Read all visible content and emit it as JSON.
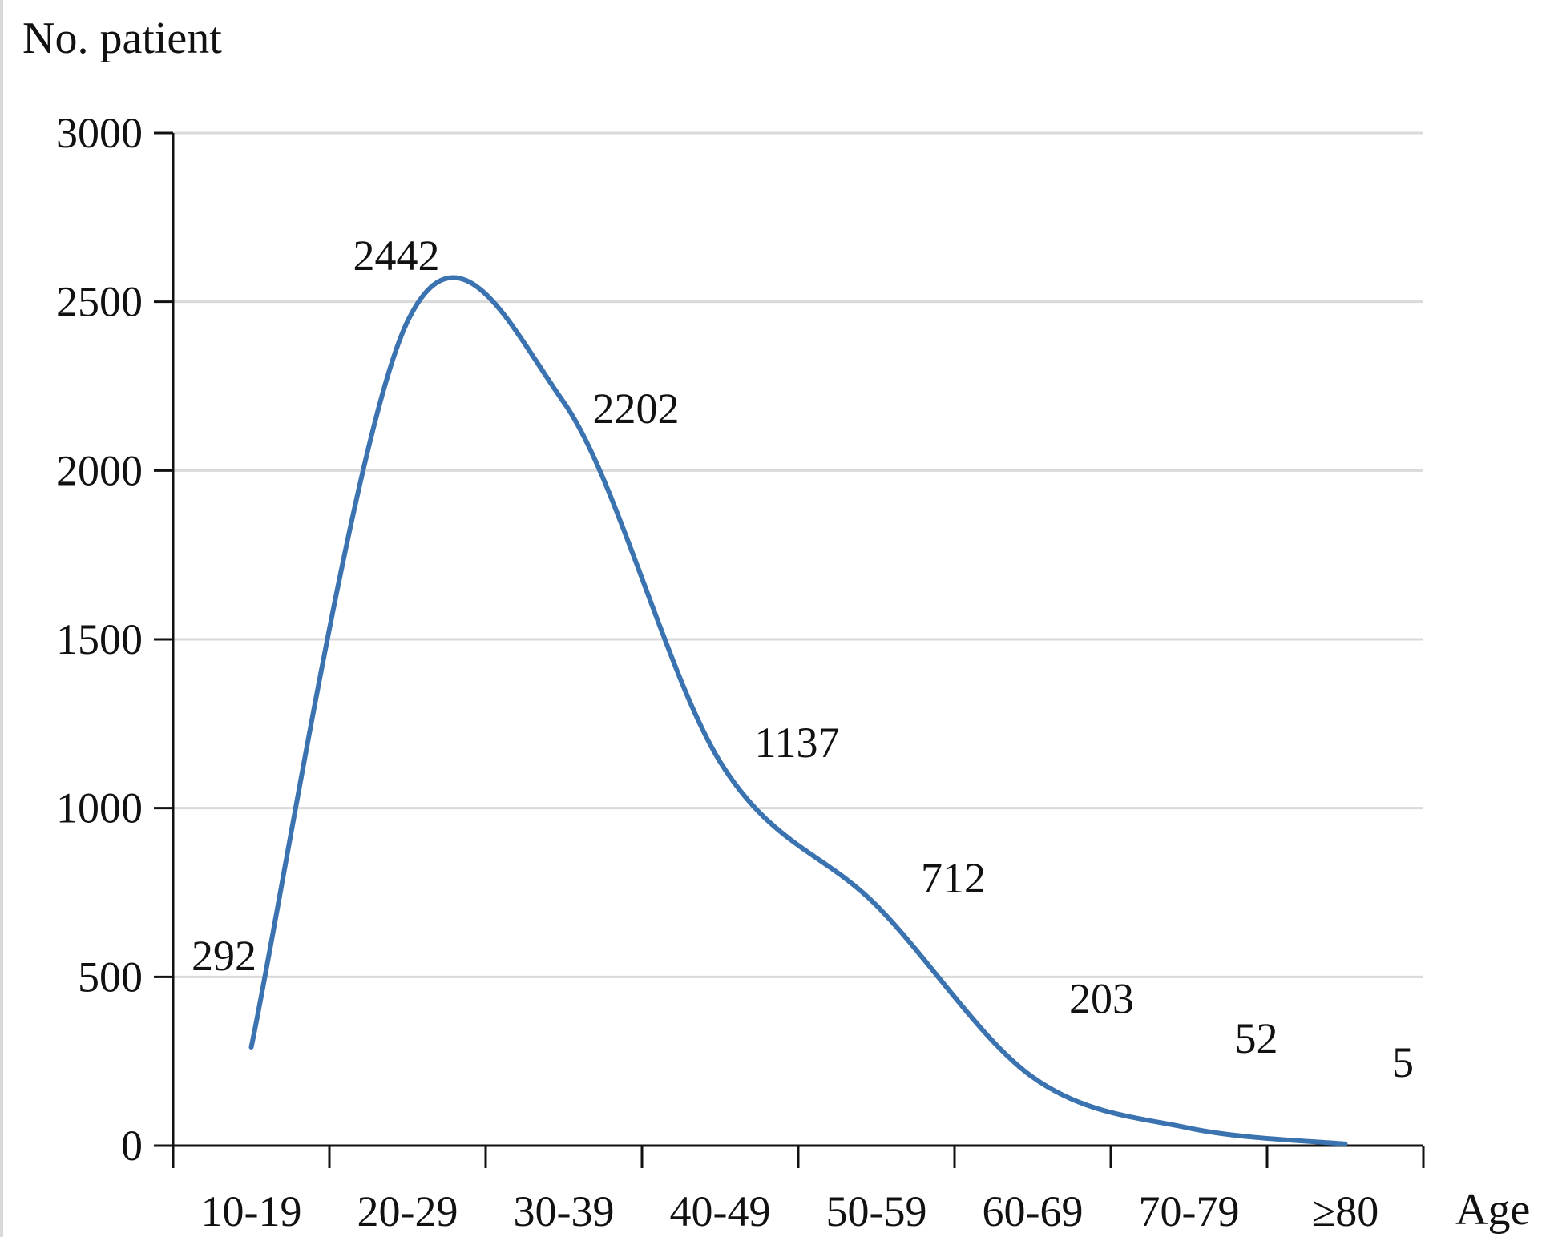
{
  "chart_data": {
    "type": "line",
    "title": "",
    "xlabel": "Age",
    "ylabel": "No. patient",
    "categories": [
      "10-19",
      "20-29",
      "30-39",
      "40-49",
      "50-59",
      "60-69",
      "70-79",
      "≥80"
    ],
    "series": [
      {
        "values": [
          292,
          2442,
          2202,
          1137,
          712,
          203,
          52,
          5
        ],
        "color": "#3a73b0"
      }
    ],
    "data_labels": [
      "292",
      "2442",
      "2202",
      "1137",
      "712",
      "203",
      "52",
      "5"
    ],
    "ylim": [
      0,
      3000
    ],
    "y_ticks": [
      0,
      500,
      1000,
      1500,
      2000,
      2500,
      3000
    ],
    "y_tick_labels": [
      "0",
      "500",
      "1000",
      "1500",
      "2000",
      "2500",
      "3000"
    ],
    "grid": true,
    "smooth": true,
    "legend": "none"
  }
}
